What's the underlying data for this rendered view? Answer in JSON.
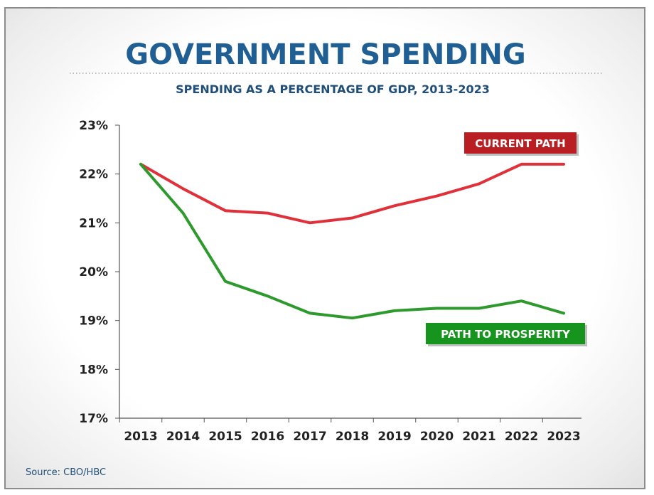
{
  "chart_data": {
    "type": "line",
    "title": "GOVERNMENT SPENDING",
    "subtitle": "SPENDING AS A PERCENTAGE OF GDP, 2013-2023",
    "x": [
      2013,
      2014,
      2015,
      2016,
      2017,
      2018,
      2019,
      2020,
      2021,
      2022,
      2023
    ],
    "x_tick_labels": [
      "2013",
      "2014",
      "2015",
      "2016",
      "2017",
      "2018",
      "2019",
      "2020",
      "2021",
      "2022",
      "2023"
    ],
    "ylim": [
      17,
      23
    ],
    "y_ticks": [
      17,
      18,
      19,
      20,
      21,
      22,
      23
    ],
    "y_tick_labels": [
      "17%",
      "18%",
      "19%",
      "20%",
      "21%",
      "22%",
      "23%"
    ],
    "grid": false,
    "series": [
      {
        "name": "CURRENT PATH",
        "color": "#e0303a",
        "label_bg": "#b81e22",
        "values": [
          22.2,
          21.7,
          21.25,
          21.2,
          21.0,
          21.1,
          21.35,
          21.55,
          21.8,
          22.2,
          22.2
        ]
      },
      {
        "name": "PATH TO PROSPERITY",
        "color": "#2e9a2e",
        "label_bg": "#16941e",
        "values": [
          22.2,
          21.2,
          19.8,
          19.5,
          19.15,
          19.05,
          19.2,
          19.25,
          19.25,
          19.4,
          19.15
        ]
      }
    ],
    "source": "Source: CBO/HBC"
  }
}
